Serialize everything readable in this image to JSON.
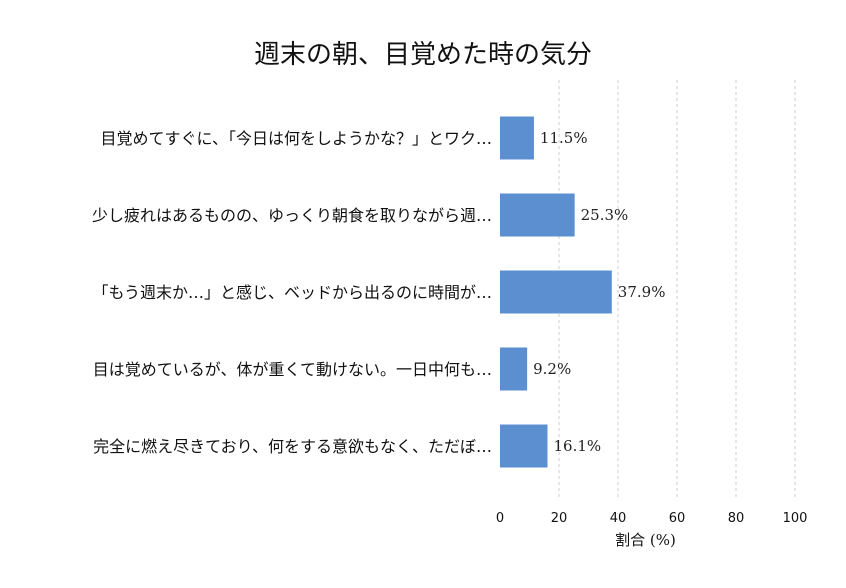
{
  "chart_data": {
    "type": "bar",
    "orientation": "horizontal",
    "title": "週末の朝、目覚めた時の気分",
    "xlabel": "割合 (%)",
    "ylabel": "",
    "categories": [
      "目覚めてすぐに、「今日は何をしようかな？」とワク…",
      "少し疲れはあるものの、ゆっくり朝食を取りながら週…",
      "「もう週末か…」と感じ、ベッドから出るのに時間が…",
      "目は覚めているが、体が重くて動けない。一日中何も…",
      "完全に燃え尽きており、何をする意欲もなく、ただぼ…"
    ],
    "values": [
      11.5,
      25.3,
      37.9,
      9.2,
      16.1
    ],
    "value_labels": [
      "11.5%",
      "25.3%",
      "37.9%",
      "9.2%",
      "16.1%"
    ],
    "xlim": [
      0,
      100
    ],
    "xticks": [
      "0",
      "20",
      "40",
      "60",
      "80",
      "100"
    ],
    "grid": "vertical dashed",
    "bar_color": "#5b8fd0",
    "grid_color": "#cccccc"
  }
}
